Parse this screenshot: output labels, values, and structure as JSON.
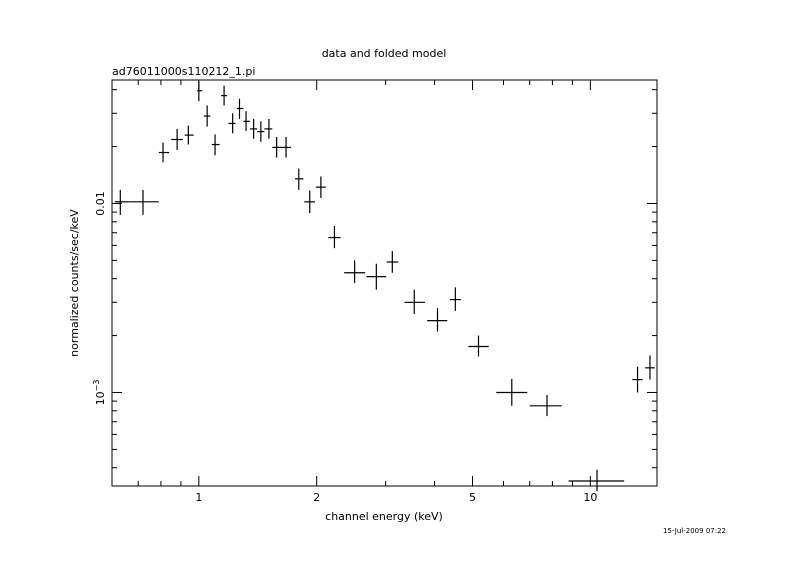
{
  "chart_data": {
    "type": "scatter",
    "title": "data and folded model",
    "subtitle": "ad76011000s110212_1.pi",
    "xlabel": "channel energy (keV)",
    "ylabel": "normalized counts/sec/keV",
    "x_scale": "log",
    "y_scale": "log",
    "xlim": [
      0.6,
      14.8
    ],
    "ylim": [
      0.00032,
      0.045
    ],
    "x_tick_labels": [
      {
        "value": 1,
        "label": "1"
      },
      {
        "value": 2,
        "label": "2"
      },
      {
        "value": 5,
        "label": "5"
      },
      {
        "value": 10,
        "label": "10"
      }
    ],
    "y_tick_labels": [
      {
        "value": 0.01,
        "base": "0.01",
        "exp": ""
      },
      {
        "value": 0.001,
        "base": "10",
        "exp": "−3"
      }
    ],
    "timestamp": "15-Jul-2009 07:22",
    "series": [
      {
        "points": [
          {
            "x": 0.63,
            "y": 0.0102,
            "xerr": [
              0.61,
              0.66
            ],
            "yerr": [
              0.0087,
              0.0118
            ]
          },
          {
            "x": 0.72,
            "y": 0.0102,
            "xerr": [
              0.66,
              0.79
            ],
            "yerr": [
              0.0087,
              0.0118
            ]
          },
          {
            "x": 0.81,
            "y": 0.0186,
            "xerr": [
              0.79,
              0.84
            ],
            "yerr": [
              0.0165,
              0.021
            ]
          },
          {
            "x": 0.88,
            "y": 0.0218,
            "xerr": [
              0.85,
              0.91
            ],
            "yerr": [
              0.0192,
              0.0248
            ]
          },
          {
            "x": 0.94,
            "y": 0.023,
            "xerr": [
              0.92,
              0.97
            ],
            "yerr": [
              0.0205,
              0.0258
            ]
          },
          {
            "x": 1.0,
            "y": 0.0395,
            "xerr": [
              0.99,
              1.02
            ],
            "yerr": [
              0.0348,
              0.0445
            ]
          },
          {
            "x": 1.05,
            "y": 0.029,
            "xerr": [
              1.03,
              1.07
            ],
            "yerr": [
              0.0255,
              0.033
            ]
          },
          {
            "x": 1.1,
            "y": 0.0205,
            "xerr": [
              1.08,
              1.13
            ],
            "yerr": [
              0.018,
              0.0232
            ]
          },
          {
            "x": 1.16,
            "y": 0.0372,
            "xerr": [
              1.14,
              1.18
            ],
            "yerr": [
              0.033,
              0.042
            ]
          },
          {
            "x": 1.22,
            "y": 0.0265,
            "xerr": [
              1.19,
              1.24
            ],
            "yerr": [
              0.0235,
              0.03
            ]
          },
          {
            "x": 1.27,
            "y": 0.0318,
            "xerr": [
              1.25,
              1.3
            ],
            "yerr": [
              0.028,
              0.0358
            ]
          },
          {
            "x": 1.32,
            "y": 0.0272,
            "xerr": [
              1.3,
              1.35
            ],
            "yerr": [
              0.0242,
              0.0308
            ]
          },
          {
            "x": 1.38,
            "y": 0.0248,
            "xerr": [
              1.35,
              1.41
            ],
            "yerr": [
              0.022,
              0.028
            ]
          },
          {
            "x": 1.44,
            "y": 0.024,
            "xerr": [
              1.41,
              1.47
            ],
            "yerr": [
              0.0212,
              0.0272
            ]
          },
          {
            "x": 1.51,
            "y": 0.0248,
            "xerr": [
              1.47,
              1.54
            ],
            "yerr": [
              0.022,
              0.028
            ]
          },
          {
            "x": 1.58,
            "y": 0.0198,
            "xerr": [
              1.54,
              1.62
            ],
            "yerr": [
              0.0175,
              0.0225
            ]
          },
          {
            "x": 1.67,
            "y": 0.0198,
            "xerr": [
              1.62,
              1.72
            ],
            "yerr": [
              0.0175,
              0.0225
            ]
          },
          {
            "x": 1.8,
            "y": 0.0135,
            "xerr": [
              1.76,
              1.85
            ],
            "yerr": [
              0.0118,
              0.0153
            ]
          },
          {
            "x": 1.92,
            "y": 0.0102,
            "xerr": [
              1.86,
              1.98
            ],
            "yerr": [
              0.0089,
              0.0117
            ]
          },
          {
            "x": 2.05,
            "y": 0.0122,
            "xerr": [
              1.99,
              2.11
            ],
            "yerr": [
              0.0107,
              0.0139
            ]
          },
          {
            "x": 2.22,
            "y": 0.0066,
            "xerr": [
              2.14,
              2.3
            ],
            "yerr": [
              0.0058,
              0.0076
            ]
          },
          {
            "x": 2.5,
            "y": 0.0043,
            "xerr": [
              2.35,
              2.66
            ],
            "yerr": [
              0.0038,
              0.005
            ]
          },
          {
            "x": 2.84,
            "y": 0.0041,
            "xerr": [
              2.68,
              3.01
            ],
            "yerr": [
              0.0035,
              0.0048
            ]
          },
          {
            "x": 3.12,
            "y": 0.0049,
            "xerr": [
              3.02,
              3.23
            ],
            "yerr": [
              0.0043,
              0.0056
            ]
          },
          {
            "x": 3.55,
            "y": 0.003,
            "xerr": [
              3.35,
              3.78
            ],
            "yerr": [
              0.0026,
              0.0035
            ]
          },
          {
            "x": 4.07,
            "y": 0.0024,
            "xerr": [
              3.83,
              4.31
            ],
            "yerr": [
              0.0021,
              0.0028
            ]
          },
          {
            "x": 4.52,
            "y": 0.0031,
            "xerr": [
              4.38,
              4.67
            ],
            "yerr": [
              0.0027,
              0.0036
            ]
          },
          {
            "x": 5.18,
            "y": 0.00175,
            "xerr": [
              4.88,
              5.5
            ],
            "yerr": [
              0.00155,
              0.002
            ]
          },
          {
            "x": 6.3,
            "y": 0.001,
            "xerr": [
              5.75,
              6.9
            ],
            "yerr": [
              0.00085,
              0.00118
            ]
          },
          {
            "x": 7.75,
            "y": 0.00085,
            "xerr": [
              7.0,
              8.45
            ],
            "yerr": [
              0.00075,
              0.00097
            ]
          },
          {
            "x": 10.4,
            "y": 0.00034,
            "xerr": [
              8.8,
              12.2
            ],
            "yerr": [
              0.0003,
              0.00039
            ]
          },
          {
            "x": 13.2,
            "y": 0.00117,
            "xerr": [
              12.8,
              13.6
            ],
            "yerr": [
              0.001,
              0.00137
            ]
          },
          {
            "x": 14.2,
            "y": 0.00135,
            "xerr": [
              13.8,
              14.6
            ],
            "yerr": [
              0.00117,
              0.00157
            ]
          }
        ]
      }
    ]
  }
}
